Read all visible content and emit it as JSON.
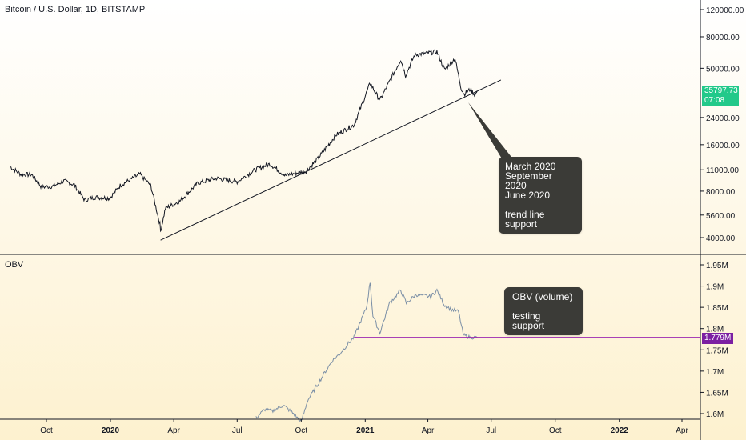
{
  "header": {
    "symbol_title": "Bitcoin / U.S. Dollar, 1D, BITSTAMP",
    "indicator_label": "OBV"
  },
  "colors": {
    "background_top": "#ffffff",
    "background_bottom": "#fdf3d4",
    "price_line": "#131722",
    "obv_line": "#7b8fa6",
    "trendline": "#131722",
    "obv_support": "#9c27b0",
    "price_tag": "#26c281",
    "obv_tag": "#7b1fa2",
    "callout_bg": "#3b3b37"
  },
  "annotations": {
    "price_callout": "March 2020\nSeptember 2020\nJune 2020\n\ntrend line support",
    "obv_callout": "OBV (volume)\n\ntesting support"
  },
  "price_tag": {
    "value": "35797.73",
    "countdown": "07:08"
  },
  "obv_tag": {
    "value": "1.779M"
  },
  "chart_data": [
    {
      "type": "line",
      "name": "price",
      "scale": "log",
      "y_ticks": [
        "120000.00",
        "80000.00",
        "50000.00",
        "24000.00",
        "16000.00",
        "11000.00",
        "8000.00",
        "5600.00",
        "4000.00"
      ],
      "y_tick_values": [
        120000,
        80000,
        50000,
        24000,
        16000,
        11000,
        8000,
        5600,
        4000
      ],
      "x_ticks": [
        "Oct",
        "2020",
        "Apr",
        "Jul",
        "Oct",
        "2021",
        "Apr",
        "Jul",
        "Oct",
        "2022",
        "Apr"
      ],
      "x_tick_dates": [
        "2019-10-01",
        "2020-01-01",
        "2020-04-01",
        "2020-07-01",
        "2020-10-01",
        "2021-01-01",
        "2021-04-01",
        "2021-07-01",
        "2021-10-01",
        "2022-01-01",
        "2022-04-01"
      ],
      "points": [
        [
          "2019-08-10",
          11500
        ],
        [
          "2019-08-25",
          10300
        ],
        [
          "2019-09-10",
          10200
        ],
        [
          "2019-09-24",
          8500
        ],
        [
          "2019-10-10",
          8600
        ],
        [
          "2019-10-26",
          9300
        ],
        [
          "2019-11-10",
          8800
        ],
        [
          "2019-11-25",
          7000
        ],
        [
          "2019-12-10",
          7300
        ],
        [
          "2019-12-31",
          7200
        ],
        [
          "2020-01-15",
          8700
        ],
        [
          "2020-02-12",
          10300
        ],
        [
          "2020-02-28",
          8700
        ],
        [
          "2020-03-12",
          4900
        ],
        [
          "2020-03-13",
          4400
        ],
        [
          "2020-03-20",
          6200
        ],
        [
          "2020-04-10",
          6900
        ],
        [
          "2020-05-05",
          9000
        ],
        [
          "2020-06-01",
          9700
        ],
        [
          "2020-07-01",
          9200
        ],
        [
          "2020-07-27",
          11000
        ],
        [
          "2020-08-17",
          12000
        ],
        [
          "2020-09-08",
          10100
        ],
        [
          "2020-10-08",
          10800
        ],
        [
          "2020-10-25",
          13000
        ],
        [
          "2020-11-20",
          18500
        ],
        [
          "2020-12-16",
          21500
        ],
        [
          "2021-01-08",
          40000
        ],
        [
          "2021-01-22",
          31000
        ],
        [
          "2021-02-21",
          57000
        ],
        [
          "2021-02-28",
          45000
        ],
        [
          "2021-03-13",
          61000
        ],
        [
          "2021-04-14",
          64000
        ],
        [
          "2021-04-25",
          49000
        ],
        [
          "2021-05-10",
          58000
        ],
        [
          "2021-05-19",
          37000
        ],
        [
          "2021-05-23",
          34000
        ],
        [
          "2021-06-01",
          36500
        ],
        [
          "2021-06-08",
          33500
        ],
        [
          "2021-06-11",
          35797.73
        ]
      ],
      "trendline": [
        [
          "2020-03-13",
          3850
        ],
        [
          "2021-07-15",
          42000
        ]
      ]
    },
    {
      "type": "line",
      "name": "OBV",
      "y_ticks": [
        "1.95M",
        "1.9M",
        "1.85M",
        "1.8M",
        "1.75M",
        "1.7M",
        "1.65M",
        "1.6M"
      ],
      "y_tick_values": [
        1.95,
        1.9,
        1.85,
        1.8,
        1.75,
        1.7,
        1.65,
        1.6
      ],
      "points": [
        [
          "2020-07-28",
          1.59
        ],
        [
          "2020-08-10",
          1.61
        ],
        [
          "2020-08-20",
          1.605
        ],
        [
          "2020-09-05",
          1.62
        ],
        [
          "2020-09-20",
          1.6
        ],
        [
          "2020-10-01",
          1.58
        ],
        [
          "2020-10-10",
          1.63
        ],
        [
          "2020-10-25",
          1.67
        ],
        [
          "2020-11-05",
          1.7
        ],
        [
          "2020-11-15",
          1.725
        ],
        [
          "2020-11-25",
          1.74
        ],
        [
          "2020-12-05",
          1.76
        ],
        [
          "2020-12-16",
          1.78
        ],
        [
          "2021-01-03",
          1.85
        ],
        [
          "2021-01-08",
          1.91
        ],
        [
          "2021-01-12",
          1.83
        ],
        [
          "2021-01-22",
          1.79
        ],
        [
          "2021-02-05",
          1.86
        ],
        [
          "2021-02-21",
          1.89
        ],
        [
          "2021-03-01",
          1.86
        ],
        [
          "2021-03-15",
          1.88
        ],
        [
          "2021-04-05",
          1.875
        ],
        [
          "2021-04-14",
          1.89
        ],
        [
          "2021-04-25",
          1.855
        ],
        [
          "2021-05-05",
          1.845
        ],
        [
          "2021-05-15",
          1.84
        ],
        [
          "2021-05-22",
          1.785
        ],
        [
          "2021-05-30",
          1.78
        ],
        [
          "2021-06-11",
          1.779
        ]
      ],
      "support_level": 1.779,
      "support_range": [
        "2020-12-16",
        "2022-05-20"
      ]
    }
  ]
}
